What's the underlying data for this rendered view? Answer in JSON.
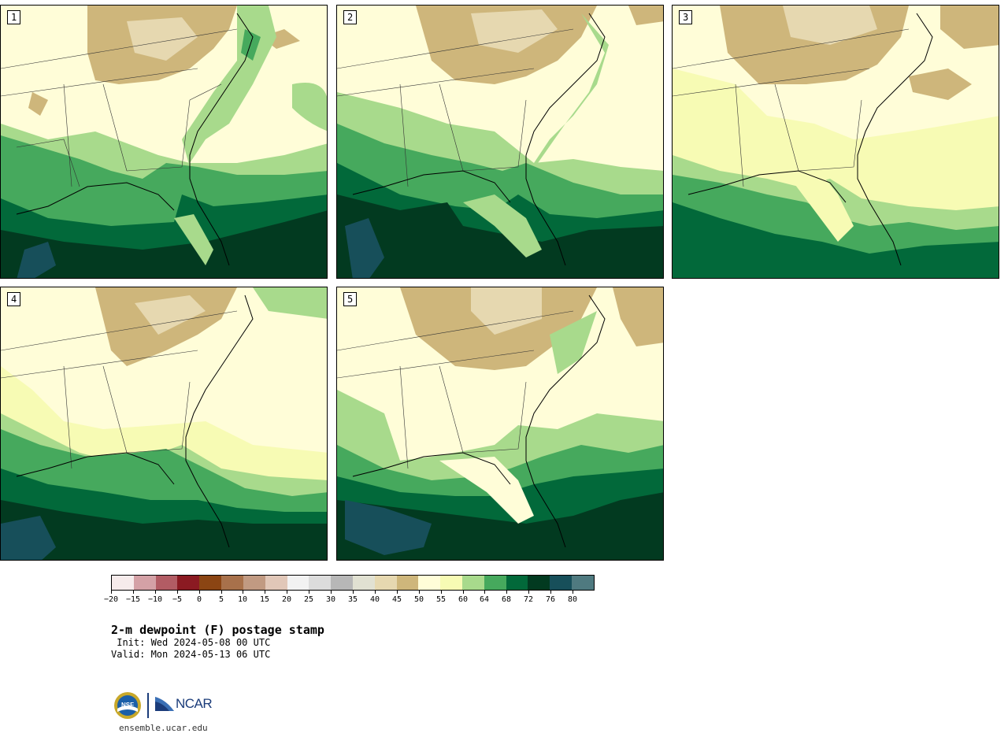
{
  "panels": [
    {
      "label": "1"
    },
    {
      "label": "2"
    },
    {
      "label": "3"
    },
    {
      "label": "4"
    },
    {
      "label": "5"
    }
  ],
  "colorbar": {
    "colors": [
      "#f6ebeb",
      "#d4a1a6",
      "#b25c64",
      "#8b1a22",
      "#8b4513",
      "#a8714b",
      "#c19a82",
      "#e1c7b8",
      "#f2f2f2",
      "#dcdcdc",
      "#b7b7b7",
      "#e1e1d2",
      "#e6d8b0",
      "#ceb67b",
      "#fffdd8",
      "#f7fbb4",
      "#a8da8c",
      "#46a95d",
      "#02693a",
      "#023a20",
      "#174f5a",
      "#4f7a80"
    ],
    "tick_labels": [
      "−20",
      "−15",
      "−10",
      "−5",
      "0",
      "5",
      "10",
      "15",
      "20",
      "25",
      "30",
      "35",
      "40",
      "45",
      "50",
      "55",
      "60",
      "64",
      "68",
      "72",
      "76",
      "80"
    ]
  },
  "title": "2-m dewpoint (F) postage stamp",
  "init": " Init: Wed 2024-05-08 00 UTC",
  "valid": "Valid: Mon 2024-05-13 06 UTC",
  "logos": {
    "ncar": "NCAR",
    "nsf": "NSF"
  },
  "site": "ensemble.ucar.edu"
}
